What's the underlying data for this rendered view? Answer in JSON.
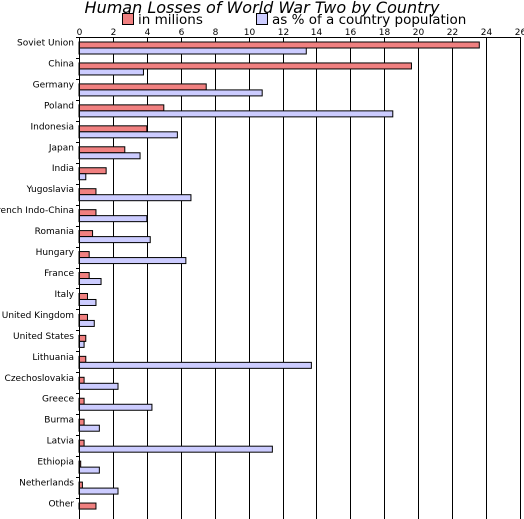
{
  "chart_data": {
    "type": "bar",
    "orientation": "horizontal",
    "title": "Human Losses of World War Two by Country",
    "categories": [
      "Soviet Union",
      "China",
      "Germany",
      "Poland",
      "Indonesia",
      "Japan",
      "India",
      "Yugoslavia",
      "French Indo-China",
      "Romania",
      "Hungary",
      "France",
      "Italy",
      "United Kingdom",
      "United States",
      "Lithuania",
      "Czechoslovakia",
      "Greece",
      "Burma",
      "Latvia",
      "Ethiopia",
      "Netherlands",
      "Other"
    ],
    "series": [
      {
        "name": "in milions",
        "color": "#f08080",
        "values": [
          23.6,
          19.6,
          7.5,
          5.0,
          4.0,
          2.7,
          1.6,
          1.0,
          1.0,
          0.8,
          0.6,
          0.6,
          0.5,
          0.5,
          0.4,
          0.4,
          0.3,
          0.3,
          0.3,
          0.3,
          0.1,
          0.2,
          1.0
        ]
      },
      {
        "name": "as % of a country population",
        "color": "#ccccff",
        "values": [
          13.4,
          3.8,
          10.8,
          18.5,
          5.8,
          3.6,
          0.4,
          6.6,
          4.0,
          4.2,
          6.3,
          1.3,
          1.0,
          0.9,
          0.3,
          13.7,
          2.3,
          4.3,
          1.2,
          11.4,
          1.2,
          2.3,
          null
        ]
      }
    ],
    "xlim": [
      0,
      26
    ],
    "xticks": [
      0,
      2,
      4,
      6,
      8,
      10,
      12,
      14,
      16,
      18,
      20,
      22,
      24,
      26
    ],
    "grid": true,
    "legend_position": "top"
  }
}
